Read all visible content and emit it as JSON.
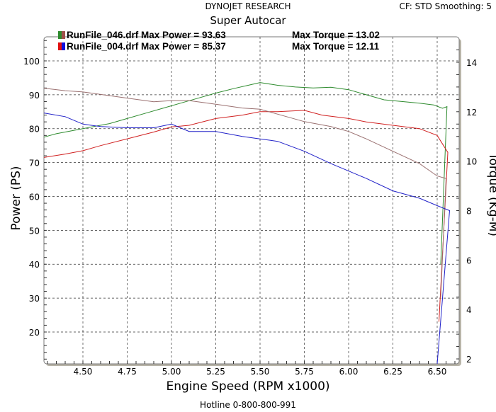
{
  "header": {
    "brand": "DYNOJET RESEARCH",
    "settings": "CF: STD  Smoothing: 5",
    "footer": "Hotline 0-800-800-991"
  },
  "chart_data": {
    "type": "line",
    "title": "Super Autocar",
    "xlabel": "Engine Speed (RPM x1000)",
    "ylabel": "Power (PS)",
    "y2label": "Torque (Kg-M)",
    "xlim": [
      4.28,
      6.624
    ],
    "ylim": [
      10.6,
      107.1
    ],
    "y2lim": [
      1.8,
      15.03
    ],
    "xticks": [
      "4.50",
      "4.75",
      "5.00",
      "5.25",
      "5.50",
      "5.75",
      "6.00",
      "6.25",
      "6.50"
    ],
    "xtick_values": [
      4.5,
      4.75,
      5.0,
      5.25,
      5.5,
      5.75,
      6.0,
      6.25,
      6.5
    ],
    "yticks": [
      20,
      30,
      40,
      50,
      60,
      70,
      80,
      90,
      100
    ],
    "y2ticks": [
      2,
      4,
      6,
      8,
      10,
      12,
      14
    ],
    "grid": true,
    "legend": [
      {
        "label": "RunFile_046.drf Max Power = 93.63",
        "torque": "Max Torque = 13.02",
        "colors": [
          "#2e8b2e",
          "#a0504a"
        ]
      },
      {
        "label": "RunFile_004.drf Max Power = 85.37",
        "torque": "Max Torque = 12.11",
        "colors": [
          "#e01010",
          "#1010e0"
        ]
      }
    ],
    "series": [
      {
        "name": "RunFile_046 Power",
        "axis": "left",
        "color": "#2e8b2e",
        "x": [
          4.28,
          4.35,
          4.45,
          4.55,
          4.65,
          4.75,
          4.85,
          4.95,
          5.05,
          5.15,
          5.25,
          5.35,
          5.45,
          5.5,
          5.6,
          5.7,
          5.8,
          5.9,
          6.0,
          6.1,
          6.2,
          6.3,
          6.4,
          6.48,
          6.53,
          6.555,
          6.52
        ],
        "y": [
          77.5,
          78.5,
          79.5,
          80.5,
          81.5,
          83,
          84.5,
          86,
          87.5,
          89,
          90.5,
          91.8,
          93,
          93.6,
          92.8,
          92.3,
          92,
          92.2,
          91.5,
          90,
          88.5,
          88,
          87.5,
          87,
          86,
          86.5,
          40
        ]
      },
      {
        "name": "RunFile_004 Power",
        "axis": "left",
        "color": "#d02020",
        "x": [
          4.28,
          4.4,
          4.5,
          4.6,
          4.75,
          4.9,
          5.0,
          5.1,
          5.25,
          5.4,
          5.5,
          5.6,
          5.75,
          5.85,
          6.0,
          6.1,
          6.25,
          6.4,
          6.5,
          6.56,
          6.51
        ],
        "y": [
          71.5,
          72.5,
          73.5,
          75,
          77,
          79,
          80.5,
          81,
          83,
          84,
          85,
          85,
          85.4,
          84,
          83,
          82,
          81,
          80,
          78,
          73,
          23
        ]
      },
      {
        "name": "RunFile_046 Torque",
        "axis": "right",
        "color": "#9a7070",
        "x": [
          4.28,
          4.4,
          4.5,
          4.6,
          4.75,
          4.9,
          5.0,
          5.1,
          5.25,
          5.4,
          5.5,
          5.6,
          5.75,
          5.9,
          6.0,
          6.1,
          6.25,
          6.4,
          6.5,
          6.55,
          6.52
        ],
        "y": [
          12.95,
          12.85,
          12.8,
          12.7,
          12.55,
          12.4,
          12.45,
          12.45,
          12.3,
          12.15,
          12.1,
          11.9,
          11.6,
          11.4,
          11.2,
          10.9,
          10.4,
          9.9,
          9.4,
          9.3,
          4.5
        ]
      },
      {
        "name": "RunFile_004 Torque",
        "axis": "right",
        "color": "#2020c8",
        "x": [
          4.28,
          4.4,
          4.5,
          4.6,
          4.75,
          4.9,
          5.0,
          5.1,
          5.25,
          5.4,
          5.5,
          5.6,
          5.75,
          5.9,
          6.0,
          6.1,
          6.25,
          6.4,
          6.5,
          6.57,
          6.5
        ],
        "y": [
          11.95,
          11.8,
          11.5,
          11.4,
          11.35,
          11.35,
          11.5,
          11.2,
          11.2,
          11.0,
          10.9,
          10.8,
          10.4,
          9.9,
          9.6,
          9.3,
          8.8,
          8.5,
          8.2,
          8.0,
          1.8
        ]
      }
    ]
  }
}
